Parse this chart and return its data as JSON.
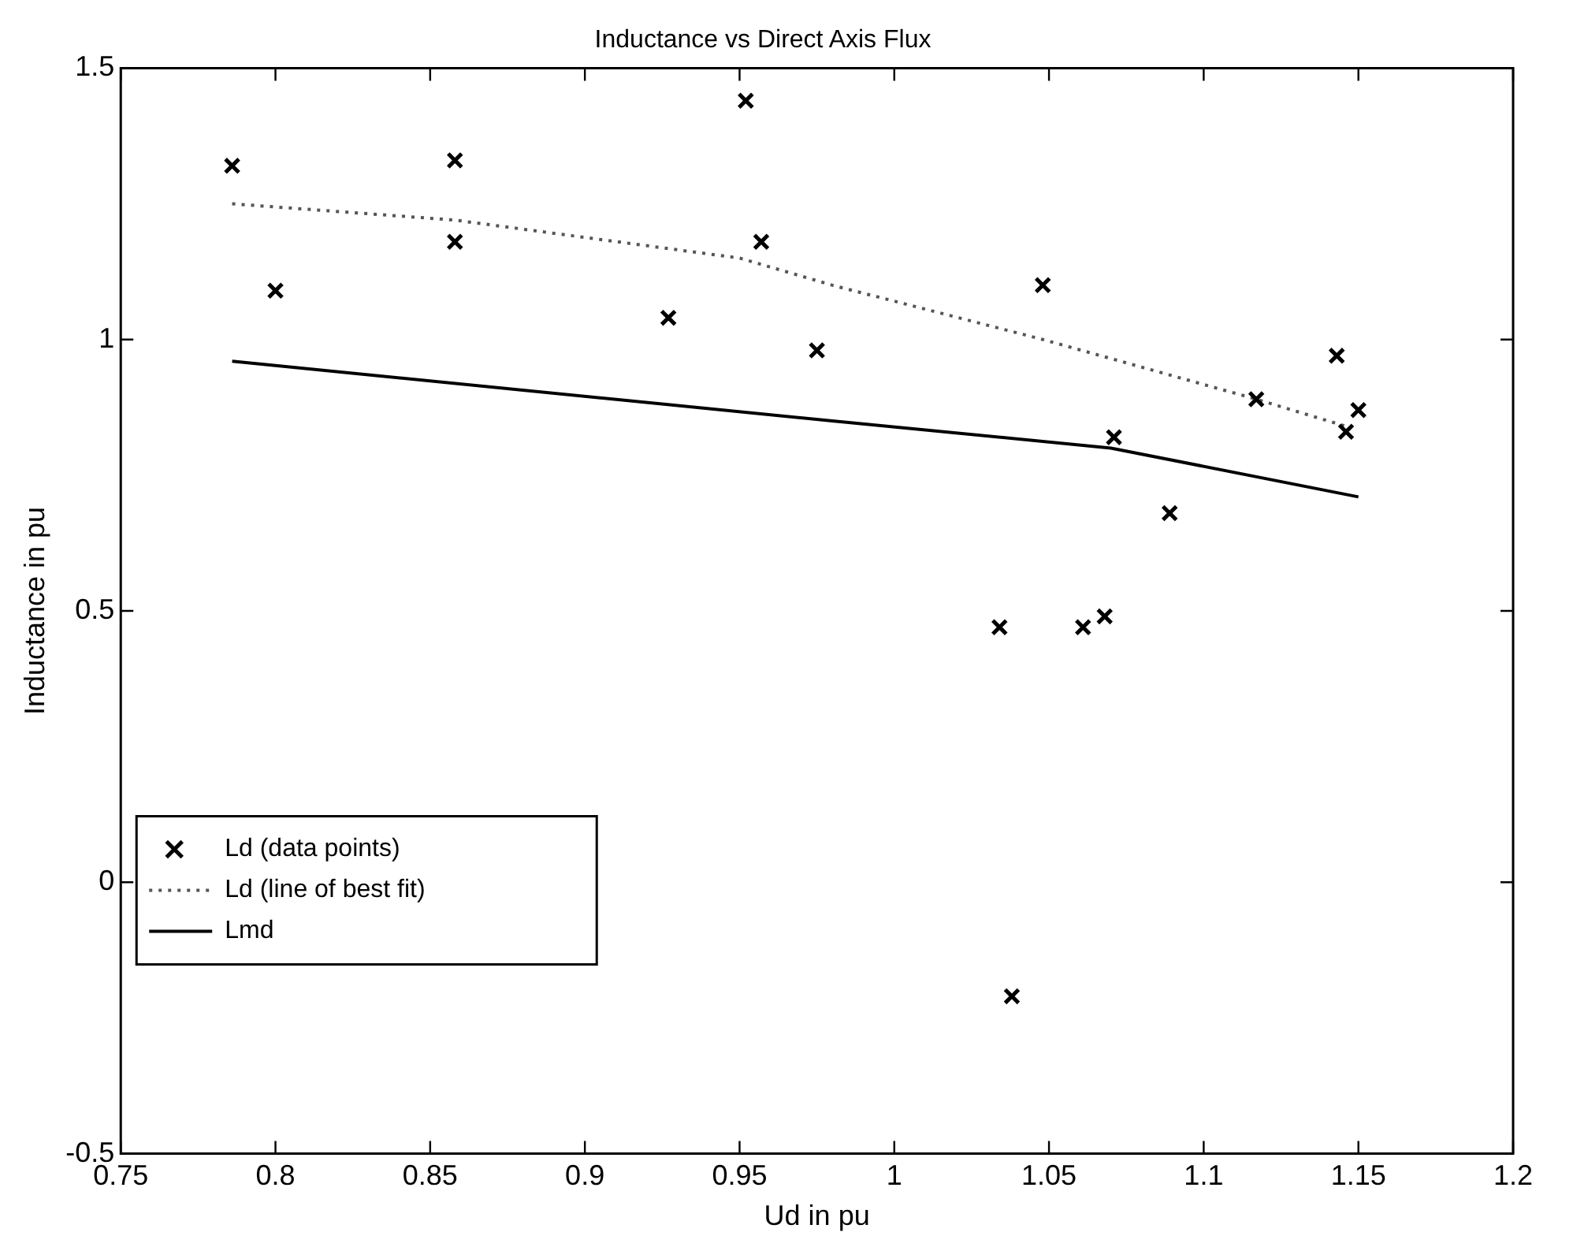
{
  "chart_data": {
    "type": "scatter",
    "title": "Inductance vs Direct Axis Flux",
    "xlabel": "Ud in pu",
    "ylabel": "Inductance in pu",
    "xlim": [
      0.75,
      1.2
    ],
    "xticks": [
      0.75,
      0.8,
      0.85,
      0.9,
      0.95,
      1,
      1.05,
      1.1,
      1.15,
      1.2
    ],
    "ylim": [
      -0.5,
      1.5
    ],
    "yticks": [
      -0.5,
      0,
      0.5,
      1,
      1.5
    ],
    "grid": false,
    "legend": "bottom left",
    "series": [
      {
        "name": "Ld (data points)",
        "marker": "cross",
        "color": "#000000",
        "x": [
          0.786,
          0.8,
          0.858,
          0.858,
          0.927,
          0.952,
          0.957,
          0.975,
          1.034,
          1.038,
          1.048,
          1.061,
          1.068,
          1.071,
          1.089,
          1.117,
          1.143,
          1.146,
          1.15
        ],
        "values": [
          1.32,
          1.09,
          1.33,
          1.18,
          1.04,
          1.44,
          1.18,
          0.98,
          0.47,
          -0.21,
          1.1,
          0.47,
          0.49,
          0.82,
          0.68,
          0.89,
          0.97,
          0.83,
          0.87
        ]
      },
      {
        "name": "Ld (line of best fit)",
        "type": "line",
        "marker": "none",
        "line_style": "dotted",
        "color": "#555555",
        "x": [
          0.786,
          0.858,
          0.95,
          0.98,
          1.048,
          1.117,
          1.146
        ],
        "values": [
          1.25,
          1.22,
          1.15,
          1.1,
          1.0,
          0.89,
          0.84
        ]
      },
      {
        "name": "Lmd",
        "type": "line",
        "marker": "none",
        "line_style": "solid",
        "color": "#000000",
        "x": [
          0.786,
          0.98,
          1.07,
          1.15
        ],
        "values": [
          0.96,
          0.85,
          0.8,
          0.71
        ]
      }
    ]
  }
}
